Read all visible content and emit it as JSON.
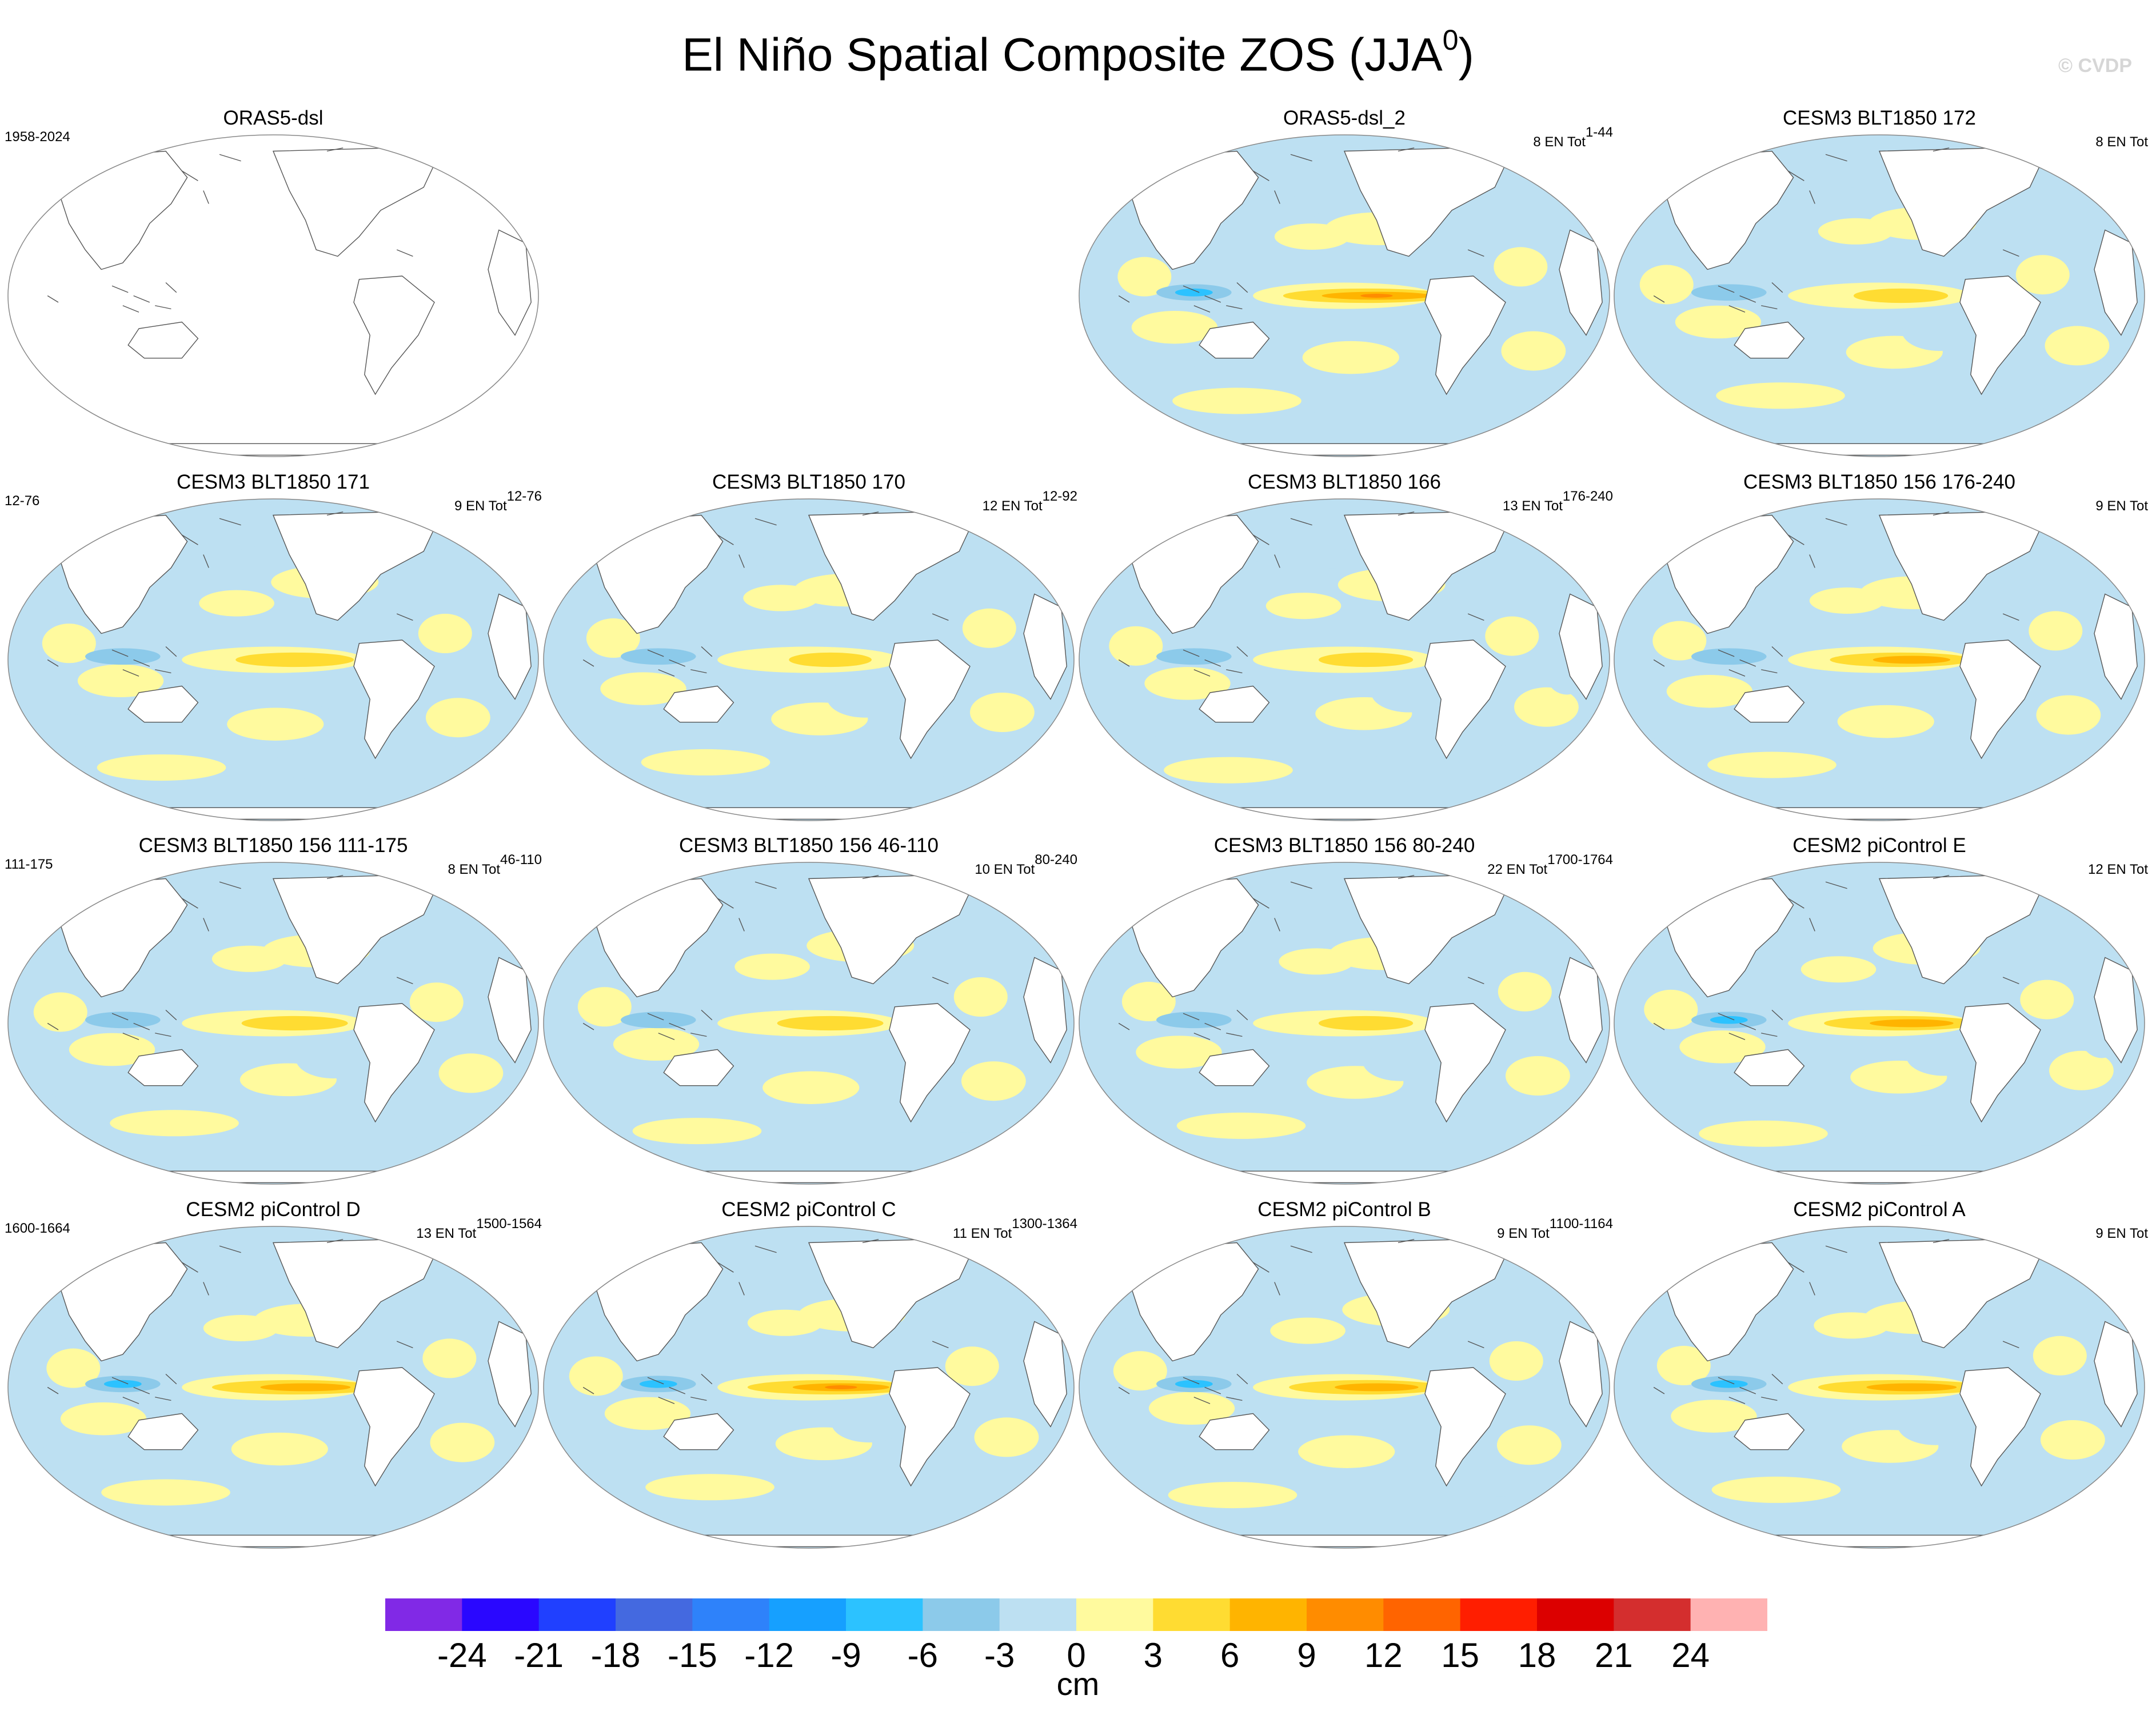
{
  "title": {
    "text": "El Niño Spatial Composite ZOS (JJA",
    "superscript": "0",
    "close": ")"
  },
  "credit": "© CVDP",
  "panels": [
    {
      "title": "ORAS5-dsl",
      "left": "1958-2024",
      "right_count": "",
      "right_sup": "",
      "blank": true,
      "amp": 0
    },
    {
      "title": "ORAS5-dsl_2",
      "left": "",
      "right_count": "8 EN Tot",
      "right_sup": "1-44",
      "blank": false,
      "amp": 1.7
    },
    {
      "title": "CESM3 BLT1850 172",
      "left": "",
      "right_count": "8 EN Tot",
      "right_sup": "",
      "blank": false,
      "amp": 0.8
    },
    {
      "title": "CESM3 BLT1850 171",
      "left": "12-76",
      "right_count": "9 EN Tot",
      "right_sup": "12-76",
      "blank": false,
      "amp": 1.0
    },
    {
      "title": "CESM3 BLT1850 170",
      "left": "",
      "right_count": "12 EN Tot",
      "right_sup": "12-92",
      "blank": false,
      "amp": 0.7
    },
    {
      "title": "CESM3 BLT1850 166",
      "left": "",
      "right_count": "13 EN Tot",
      "right_sup": "176-240",
      "blank": false,
      "amp": 0.8
    },
    {
      "title": "CESM3 BLT1850 156 176-240",
      "left": "",
      "right_count": "9 EN Tot",
      "right_sup": "",
      "blank": false,
      "amp": 1.2
    },
    {
      "title": "CESM3 BLT1850 156 111-175",
      "left": "111-175",
      "right_count": "8 EN Tot",
      "right_sup": "46-110",
      "blank": false,
      "amp": 0.9
    },
    {
      "title": "CESM3 BLT1850 156 46-110",
      "left": "",
      "right_count": "10 EN Tot",
      "right_sup": "80-240",
      "blank": false,
      "amp": 0.9
    },
    {
      "title": "CESM3 BLT1850 156 80-240",
      "left": "",
      "right_count": "22 EN Tot",
      "right_sup": "1700-1764",
      "blank": false,
      "amp": 0.8
    },
    {
      "title": "CESM2 piControl E",
      "left": "",
      "right_count": "12 EN Tot",
      "right_sup": "",
      "blank": false,
      "amp": 1.3
    },
    {
      "title": "CESM2 piControl D",
      "left": "1600-1664",
      "right_count": "13 EN Tot",
      "right_sup": "1500-1564",
      "blank": false,
      "amp": 1.4
    },
    {
      "title": "CESM2 piControl C",
      "left": "",
      "right_count": "11 EN Tot",
      "right_sup": "1300-1364",
      "blank": false,
      "amp": 1.5
    },
    {
      "title": "CESM2 piControl B",
      "left": "",
      "right_count": "9 EN Tot",
      "right_sup": "1100-1164",
      "blank": false,
      "amp": 1.3
    },
    {
      "title": "CESM2 piControl A",
      "left": "",
      "right_count": "9 EN Tot",
      "right_sup": "",
      "blank": false,
      "amp": 1.4
    }
  ],
  "colorbar": {
    "colors": [
      "#8129e6",
      "#2a07ff",
      "#2040ff",
      "#4469e0",
      "#2e82fa",
      "#16a0ff",
      "#2cc2ff",
      "#8ccaea",
      "#bde0f2",
      "#fffa9e",
      "#ffdc32",
      "#ffb400",
      "#ff8c00",
      "#ff6400",
      "#ff1e00",
      "#dc0000",
      "#d42e2e",
      "#ffb2b2"
    ],
    "labels": [
      "-24",
      "-21",
      "-18",
      "-15",
      "-12",
      "-9",
      "-6",
      "-3",
      "0",
      "3",
      "6",
      "9",
      "12",
      "15",
      "18",
      "21",
      "24"
    ],
    "units": "cm"
  }
}
